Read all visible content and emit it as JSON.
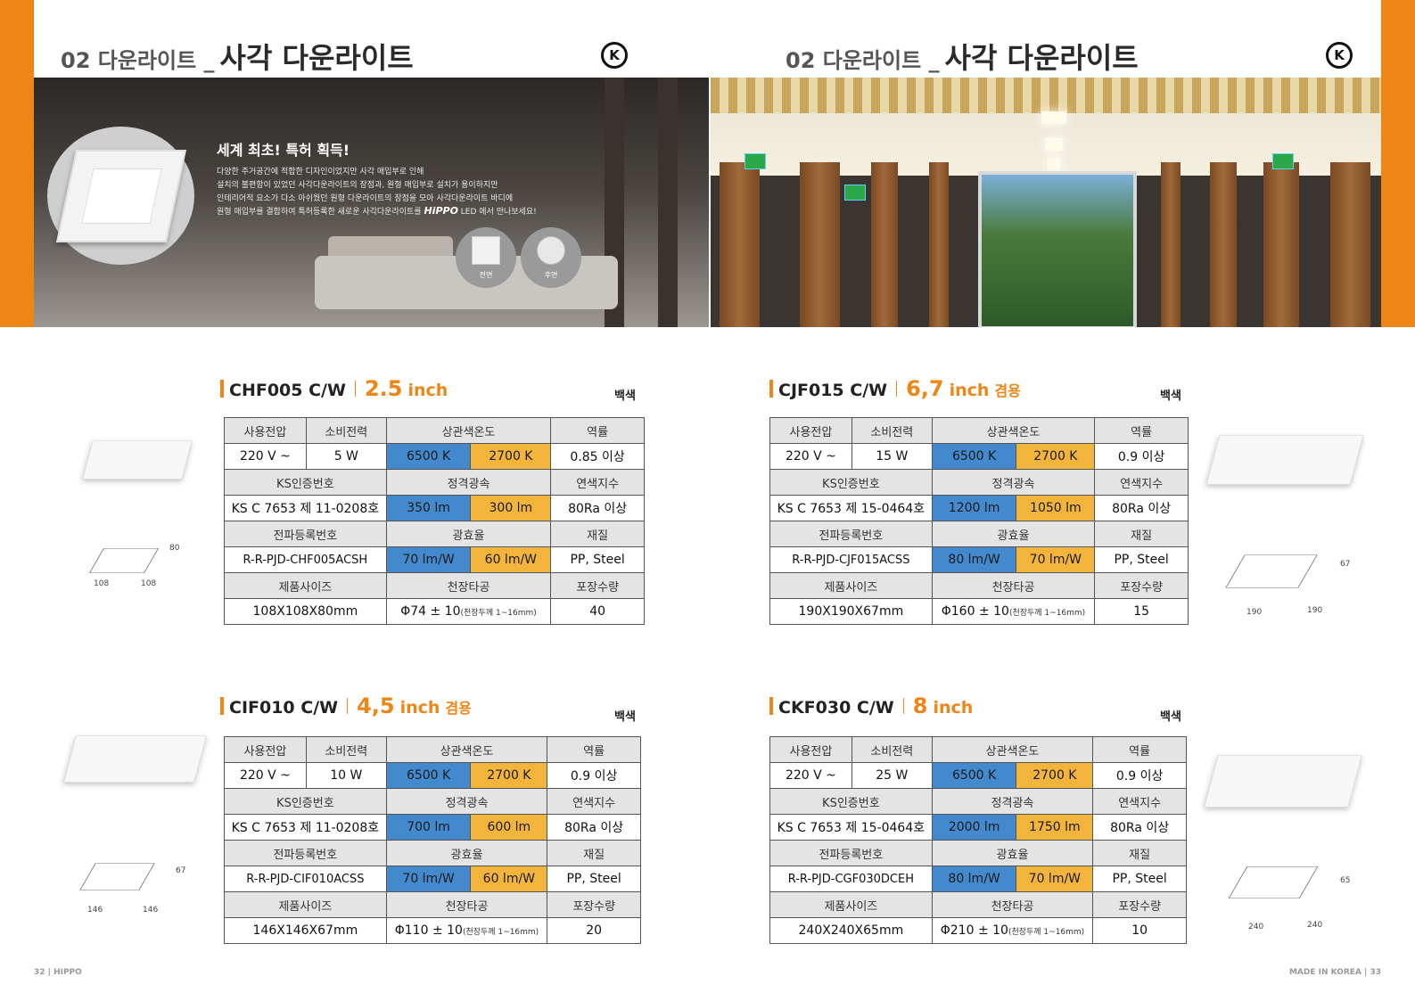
{
  "header": {
    "left": {
      "section": "02 다운라이트 _",
      "title": "사각 다운라이트",
      "logo": "K"
    },
    "right": {
      "section": "02 다운라이트 _",
      "title": "사각 다운라이트",
      "logo": "K"
    }
  },
  "promo": {
    "title": "세계 최초! 특허 획득!",
    "lines": [
      "다양한 주거공간에 적합한 디자인이었지만 사각 매입부로 인해",
      "설치의 불편함이 있었던 사각다운라이트의 장점과, 원형 매입부로 설치가 용이하지만",
      "인테리어적 요소가 다소 아쉬웠던 원형 다운라이트의 장점을 모아 사각다운라이트 바디에",
      "원형 매입부를 결합하여 특허등록한 새로운 사각다운라이트를"
    ],
    "brand": "HiPPO",
    "brand_suffix": "LED 에서 만나보세요!",
    "front_label": "전면",
    "back_label": "후면"
  },
  "products": [
    {
      "model": "CHF005 C/W",
      "size": "2.5",
      "unit": "inch",
      "extra": "",
      "color": "백색",
      "h1": [
        "사용전압",
        "소비전력",
        "상관색온도",
        "역률"
      ],
      "r1": [
        "220 V ~",
        "5 W",
        "6500 K",
        "2700 K",
        "0.85 이상"
      ],
      "h2": [
        "KS인증번호",
        "정격광속",
        "연색지수"
      ],
      "r2": [
        "KS C 7653 제 11-0208호",
        "350 lm",
        "300 lm",
        "80Ra 이상"
      ],
      "h3": [
        "전파등록번호",
        "광효율",
        "재질"
      ],
      "r3": [
        "R-R-PJD-CHF005ACSH",
        "70 lm/W",
        "60 lm/W",
        "PP, Steel"
      ],
      "h4": [
        "제품사이즈",
        "천장타공",
        "포장수량"
      ],
      "r4": [
        "108X108X80mm",
        "Φ74 ± 10",
        "(천장두께 1~16mm)",
        "40"
      ],
      "dims": [
        "80",
        "108",
        "108"
      ]
    },
    {
      "model": "CJF015 C/W",
      "size": "6,7",
      "unit": "inch",
      "extra": "겸용",
      "color": "백색",
      "h1": [
        "사용전압",
        "소비전력",
        "상관색온도",
        "역률"
      ],
      "r1": [
        "220 V ~",
        "15 W",
        "6500 K",
        "2700 K",
        "0.9 이상"
      ],
      "h2": [
        "KS인증번호",
        "정격광속",
        "연색지수"
      ],
      "r2": [
        "KS C 7653 제 15-0464호",
        "1200 lm",
        "1050 lm",
        "80Ra 이상"
      ],
      "h3": [
        "전파등록번호",
        "광효율",
        "재질"
      ],
      "r3": [
        "R-R-PJD-CJF015ACSS",
        "80 lm/W",
        "70 lm/W",
        "PP, Steel"
      ],
      "h4": [
        "제품사이즈",
        "천장타공",
        "포장수량"
      ],
      "r4": [
        "190X190X67mm",
        "Φ160 ± 10",
        "(천장두께 1~16mm)",
        "15"
      ],
      "dims": [
        "67",
        "190",
        "190"
      ]
    },
    {
      "model": "CIF010 C/W",
      "size": "4,5",
      "unit": "inch",
      "extra": "겸용",
      "color": "백색",
      "h1": [
        "사용전압",
        "소비전력",
        "상관색온도",
        "역률"
      ],
      "r1": [
        "220 V ~",
        "10 W",
        "6500 K",
        "2700 K",
        "0.9 이상"
      ],
      "h2": [
        "KS인증번호",
        "정격광속",
        "연색지수"
      ],
      "r2": [
        "KS C 7653 제 11-0208호",
        "700 lm",
        "600 lm",
        "80Ra 이상"
      ],
      "h3": [
        "전파등록번호",
        "광효율",
        "재질"
      ],
      "r3": [
        "R-R-PJD-CIF010ACSS",
        "70 lm/W",
        "60 lm/W",
        "PP, Steel"
      ],
      "h4": [
        "제품사이즈",
        "천장타공",
        "포장수량"
      ],
      "r4": [
        "146X146X67mm",
        "Φ110 ± 10",
        "(천장두께 1~16mm)",
        "20"
      ],
      "dims": [
        "67",
        "146",
        "146"
      ]
    },
    {
      "model": "CKF030 C/W",
      "size": "8",
      "unit": "inch",
      "extra": "",
      "color": "백색",
      "h1": [
        "사용전압",
        "소비전력",
        "상관색온도",
        "역률"
      ],
      "r1": [
        "220 V ~",
        "25 W",
        "6500 K",
        "2700 K",
        "0.9 이상"
      ],
      "h2": [
        "KS인증번호",
        "정격광속",
        "연색지수"
      ],
      "r2": [
        "KS C 7653 제 15-0464호",
        "2000 lm",
        "1750 lm",
        "80Ra 이상"
      ],
      "h3": [
        "전파등록번호",
        "광효율",
        "재질"
      ],
      "r3": [
        "R-R-PJD-CGF030DCEH",
        "80 lm/W",
        "70 lm/W",
        "PP, Steel"
      ],
      "h4": [
        "제품사이즈",
        "천장타공",
        "포장수량"
      ],
      "r4": [
        "240X240X65mm",
        "Φ210 ± 10",
        "(천장두께 1~16mm)",
        "10"
      ],
      "dims": [
        "65",
        "240",
        "240"
      ]
    }
  ],
  "footer": {
    "left": "32 | HIPPO",
    "right": "MADE IN KOREA | 33"
  },
  "colors": {
    "accent": "#ee8514",
    "cool": "#4289cd",
    "warm": "#f3b43c"
  }
}
